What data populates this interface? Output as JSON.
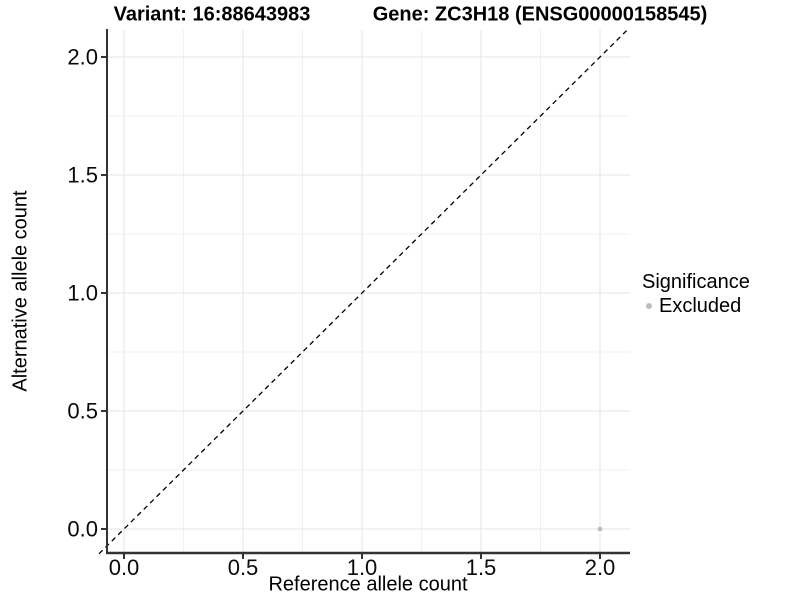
{
  "titles": {
    "variant": "Variant: 16:88643983",
    "gene": "Gene: ZC3H18 (ENSG00000158545)"
  },
  "chart_data": {
    "type": "scatter",
    "xlabel": "Reference allele count",
    "ylabel": "Alternative allele count",
    "xlim": [
      -0.105,
      2.115
    ],
    "ylim": [
      -0.105,
      2.115
    ],
    "xticks": {
      "values": [
        0,
        0.5,
        1,
        1.5,
        2
      ],
      "labels": [
        "0.0",
        "0.5",
        "1.0",
        "1.5",
        "2.0"
      ],
      "minor": [
        0.25,
        0.75,
        1.25,
        1.75
      ]
    },
    "yticks": {
      "values": [
        0,
        0.5,
        1,
        1.5,
        2
      ],
      "labels": [
        "0.0",
        "0.5",
        "1.0",
        "1.5",
        "2.0"
      ],
      "minor": [
        0.25,
        0.75,
        1.25,
        1.75
      ]
    },
    "grid": true,
    "reference_line": {
      "equation": "y = x",
      "style": "dashed",
      "color": "#000000"
    },
    "legend": {
      "title": "Significance",
      "position": "right"
    },
    "series": [
      {
        "name": "Excluded",
        "color": "#bdbdbd",
        "points": [
          {
            "x": 2,
            "y": 0
          }
        ]
      }
    ],
    "colors": {
      "grid_major": "#e6e6e6",
      "grid_minor": "#f1f1f1",
      "axis_line": "#333333",
      "tick_text": "#0a0a0a"
    }
  }
}
